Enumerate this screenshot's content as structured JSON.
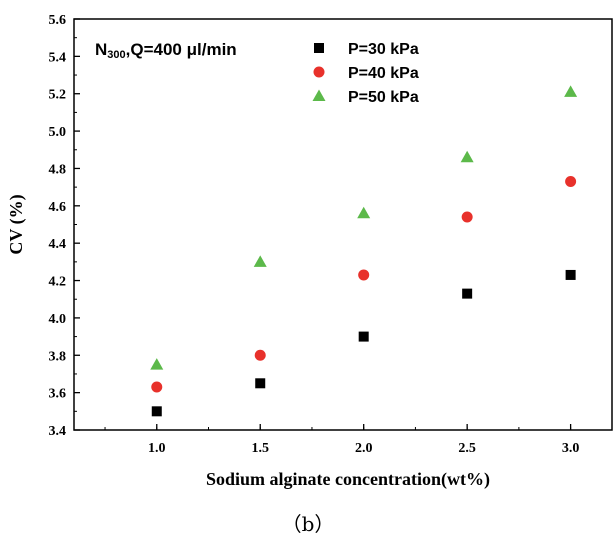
{
  "chart_data": {
    "type": "scatter",
    "annotation": "N300,Q=400 μl/min",
    "xlabel": "Sodium alginate concentration(wt%)",
    "ylabel": "CV (%)",
    "xlim": [
      0.6,
      3.2
    ],
    "ylim": [
      3.4,
      5.6
    ],
    "xticks": [
      "1.0",
      "1.5",
      "2.0",
      "2.5",
      "3.0"
    ],
    "yticks": [
      "3.4",
      "3.6",
      "3.8",
      "4.0",
      "4.2",
      "4.4",
      "4.6",
      "4.8",
      "5.0",
      "5.2",
      "5.4",
      "5.6"
    ],
    "legend_position": "top-right",
    "x": [
      1.0,
      1.5,
      2.0,
      2.5,
      3.0
    ],
    "series": [
      {
        "name": "P=30 kPa",
        "marker": "square",
        "color": "#000000",
        "values": [
          3.5,
          3.65,
          3.9,
          4.13,
          4.23
        ]
      },
      {
        "name": "P=40 kPa",
        "marker": "circle",
        "color": "#e8312b",
        "values": [
          3.63,
          3.8,
          4.23,
          4.54,
          4.73
        ]
      },
      {
        "name": "P=50 kPa",
        "marker": "triangle",
        "color": "#5cb94a",
        "values": [
          3.75,
          4.3,
          4.56,
          4.86,
          5.21
        ]
      }
    ]
  },
  "caption": "（b）"
}
